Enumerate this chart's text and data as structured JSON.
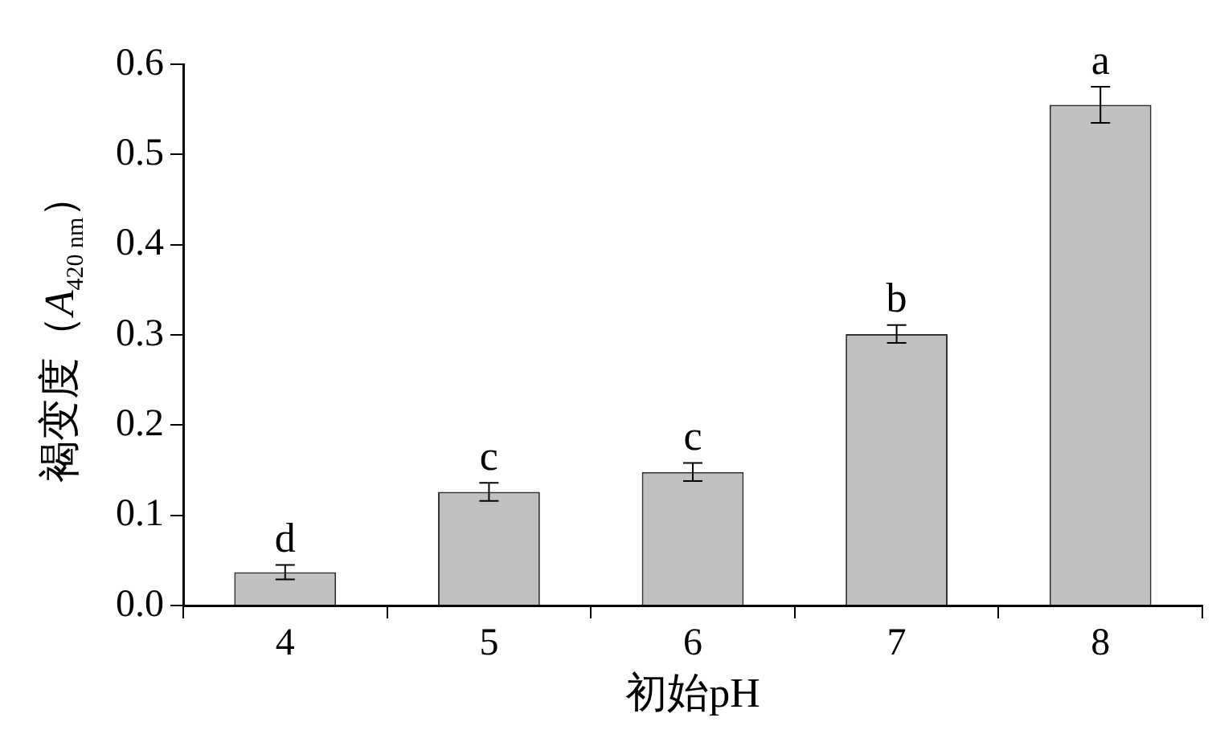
{
  "chart_data": {
    "type": "bar",
    "xlabel": "初始pH",
    "ylabel": "褐变度（A$_{420 nm}$）",
    "categories": [
      "4",
      "5",
      "6",
      "7",
      "8"
    ],
    "values": [
      0.037,
      0.126,
      0.148,
      0.301,
      0.555
    ],
    "errors": [
      0.008,
      0.01,
      0.01,
      0.01,
      0.02
    ],
    "color": "#c0c0c0",
    "ylim": [
      0,
      0.6
    ],
    "yticks": [
      {
        "value": 0,
        "label": "0.0"
      },
      0.1,
      0.2,
      0.3,
      0.4,
      0.5,
      0.6
    ],
    "grid": false,
    "annotations": [
      {
        "text": "d",
        "x": "4",
        "y": 0.045
      },
      {
        "text": "c",
        "x": "5",
        "y": 0.136
      },
      {
        "text": "c",
        "x": "6",
        "y": 0.158
      },
      {
        "text": "b",
        "x": "7",
        "y": 0.311
      },
      {
        "text": "a",
        "x": "8",
        "y": 0.575
      }
    ]
  }
}
